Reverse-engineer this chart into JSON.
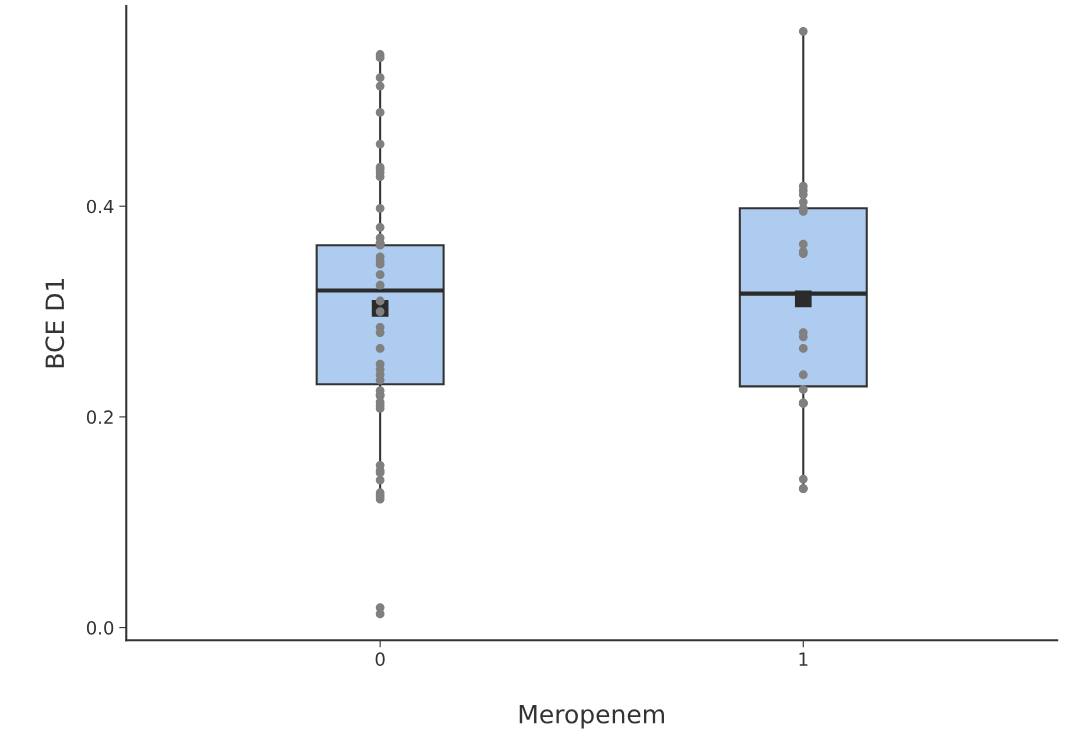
{
  "chart_data": {
    "type": "box",
    "xlabel": "Meropenem",
    "ylabel": "BCE D1",
    "categories": [
      "0",
      "1"
    ],
    "boxes": [
      {
        "low": 0.124,
        "q1": 0.231,
        "median": 0.32,
        "q3": 0.363,
        "high": 0.544,
        "mean": 0.303
      },
      {
        "low": 0.133,
        "q1": 0.229,
        "median": 0.317,
        "q3": 0.398,
        "high": 0.566,
        "mean": 0.312
      }
    ],
    "color": "#aecbf0",
    "series": [
      {
        "type": "scatter",
        "color": "#808080",
        "x": [
          "0",
          "0",
          "0",
          "0",
          "0",
          "0",
          "0",
          "0",
          "0",
          "0",
          "0",
          "0",
          "0",
          "0",
          "0",
          "0",
          "0",
          "0",
          "0",
          "0",
          "0",
          "0",
          "0",
          "0",
          "0",
          "0",
          "0",
          "0",
          "0",
          "0",
          "0",
          "0",
          "0",
          "0",
          "0",
          "0",
          "0",
          "0",
          "0",
          "0",
          "0",
          "0",
          "0",
          "0",
          "0",
          "1",
          "1",
          "1",
          "1",
          "1",
          "1",
          "1",
          "1",
          "1",
          "1",
          "1",
          "1",
          "1",
          "1",
          "1",
          "1",
          "1",
          "1",
          "1",
          "1",
          "1"
        ],
        "values": [
          0.544,
          0.541,
          0.522,
          0.514,
          0.489,
          0.459,
          0.437,
          0.435,
          0.432,
          0.428,
          0.398,
          0.38,
          0.37,
          0.365,
          0.365,
          0.363,
          0.352,
          0.348,
          0.345,
          0.335,
          0.325,
          0.31,
          0.3,
          0.285,
          0.28,
          0.265,
          0.25,
          0.245,
          0.24,
          0.235,
          0.225,
          0.221,
          0.22,
          0.214,
          0.211,
          0.208,
          0.154,
          0.149,
          0.147,
          0.14,
          0.128,
          0.125,
          0.122,
          0.019,
          0.013,
          0.566,
          0.419,
          0.415,
          0.411,
          0.404,
          0.398,
          0.395,
          0.364,
          0.357,
          0.355,
          0.28,
          0.276,
          0.265,
          0.24,
          0.226,
          0.213,
          0.213,
          0.213,
          0.141,
          0.132,
          0.132
        ]
      }
    ],
    "ylim": [
      -0.012,
      0.59
    ],
    "yticks": [
      {
        "value": 0,
        "label": "0.0"
      },
      {
        "value": 0.2,
        "label": "0.2"
      },
      {
        "value": 0.4,
        "label": "0.4"
      }
    ],
    "grid": false,
    "marker": "circle"
  }
}
